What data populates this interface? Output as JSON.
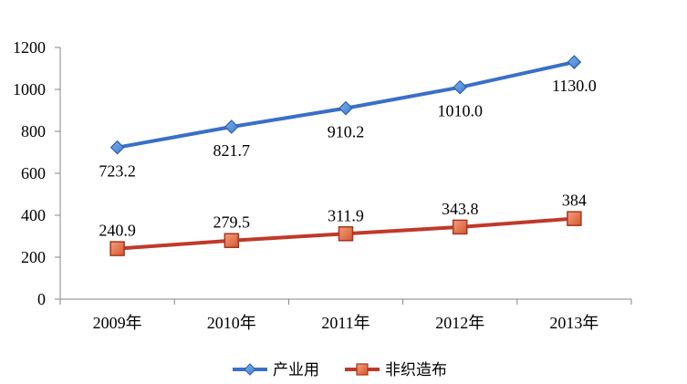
{
  "chart_data": {
    "type": "line",
    "categories": [
      "2009年",
      "2010年",
      "2011年",
      "2012年",
      "2013年"
    ],
    "ylim": [
      0,
      1200
    ],
    "yticks": [
      0,
      200,
      400,
      600,
      800,
      1000,
      1200
    ],
    "grid": false,
    "legend_position": "bottom",
    "series": [
      {
        "name": "产业用",
        "values": [
          723.2,
          821.7,
          910.2,
          1010.0,
          1130.0
        ],
        "labels": [
          "723.2",
          "821.7",
          "910.2",
          "1010.0",
          "1130.0"
        ],
        "color": "#3A6FC8",
        "marker": "diamond",
        "label_position": "below"
      },
      {
        "name": "非织造布",
        "values": [
          240.9,
          279.5,
          311.9,
          343.8,
          384
        ],
        "labels": [
          "240.9",
          "279.5",
          "311.9",
          "343.8",
          "384"
        ],
        "color": "#C0392B",
        "marker": "square",
        "label_position": "above"
      }
    ]
  }
}
